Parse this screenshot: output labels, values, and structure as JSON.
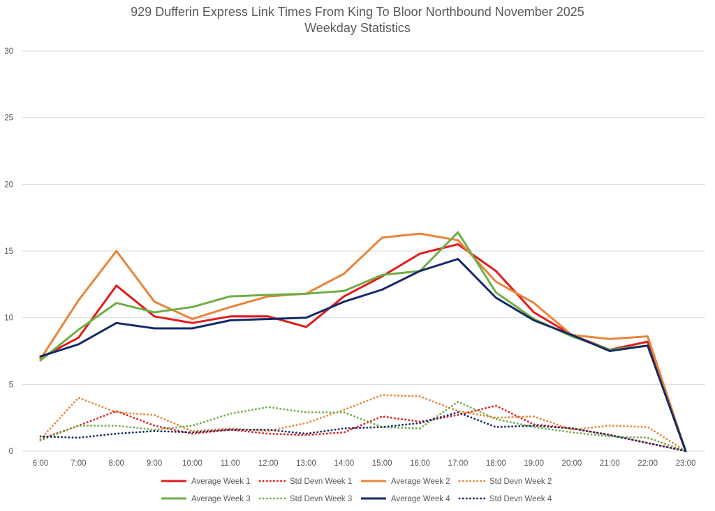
{
  "chart_data": {
    "type": "line",
    "title": "929 Dufferin Express Link Times From King To Bloor Northbound November 2025",
    "subtitle": "Weekday Statistics",
    "xlabel": "",
    "ylabel": "",
    "ylim": [
      0,
      30
    ],
    "yticks": [
      0,
      5,
      10,
      15,
      20,
      25,
      30
    ],
    "grid": true,
    "legend_position": "bottom",
    "categories": [
      "6:00",
      "7:00",
      "8:00",
      "9:00",
      "10:00",
      "11:00",
      "12:00",
      "13:00",
      "14:00",
      "15:00",
      "16:00",
      "17:00",
      "18:00",
      "19:00",
      "20:00",
      "21:00",
      "22:00",
      "23:00"
    ],
    "series": [
      {
        "name": "Average Week 1",
        "color": "#e41b1b",
        "dash": "solid",
        "values": [
          7.0,
          8.5,
          12.4,
          10.1,
          9.6,
          10.1,
          10.1,
          9.3,
          11.6,
          13.1,
          14.8,
          15.5,
          13.5,
          10.4,
          8.7,
          7.6,
          8.2,
          0
        ]
      },
      {
        "name": "Std Devn Week 1",
        "color": "#e41b1b",
        "dash": "dot",
        "values": [
          0.9,
          1.9,
          3.0,
          1.9,
          1.3,
          1.6,
          1.3,
          1.2,
          1.4,
          2.6,
          2.2,
          2.7,
          3.4,
          2.0,
          1.7,
          1.2,
          0.6,
          0
        ]
      },
      {
        "name": "Average Week 2",
        "color": "#e8843a",
        "dash": "solid",
        "values": [
          6.9,
          11.3,
          15.0,
          11.2,
          9.9,
          10.8,
          11.6,
          11.8,
          13.3,
          16.0,
          16.3,
          15.8,
          12.7,
          11.1,
          8.7,
          8.4,
          8.6,
          0
        ]
      },
      {
        "name": "Std Devn Week 2",
        "color": "#e8843a",
        "dash": "dot",
        "values": [
          0.9,
          4.0,
          2.9,
          2.7,
          1.5,
          1.7,
          1.5,
          2.1,
          3.1,
          4.2,
          4.1,
          3.0,
          2.5,
          2.6,
          1.6,
          1.9,
          1.8,
          0
        ]
      },
      {
        "name": "Average Week 3",
        "color": "#6fae46",
        "dash": "solid",
        "values": [
          6.8,
          9.1,
          11.1,
          10.4,
          10.8,
          11.6,
          11.7,
          11.8,
          12.0,
          13.2,
          13.5,
          16.4,
          11.9,
          9.9,
          8.6,
          7.6,
          7.9,
          0
        ]
      },
      {
        "name": "Std Devn Week 3",
        "color": "#6fae46",
        "dash": "dot",
        "values": [
          0.8,
          1.9,
          1.9,
          1.6,
          1.9,
          2.8,
          3.3,
          2.9,
          2.9,
          1.8,
          1.7,
          3.7,
          2.4,
          1.8,
          1.4,
          1.1,
          1.0,
          0
        ]
      },
      {
        "name": "Average Week 4",
        "color": "#142966",
        "dash": "solid",
        "values": [
          7.1,
          8.0,
          9.6,
          9.2,
          9.2,
          9.8,
          9.9,
          10.0,
          11.2,
          12.1,
          13.5,
          14.4,
          11.5,
          9.8,
          8.7,
          7.5,
          7.9,
          0
        ]
      },
      {
        "name": "Std Devn Week 4",
        "color": "#142966",
        "dash": "dot",
        "values": [
          1.1,
          1.0,
          1.3,
          1.5,
          1.4,
          1.6,
          1.6,
          1.3,
          1.7,
          1.8,
          2.1,
          2.9,
          1.8,
          1.9,
          1.7,
          1.2,
          0.6,
          0
        ]
      }
    ]
  }
}
